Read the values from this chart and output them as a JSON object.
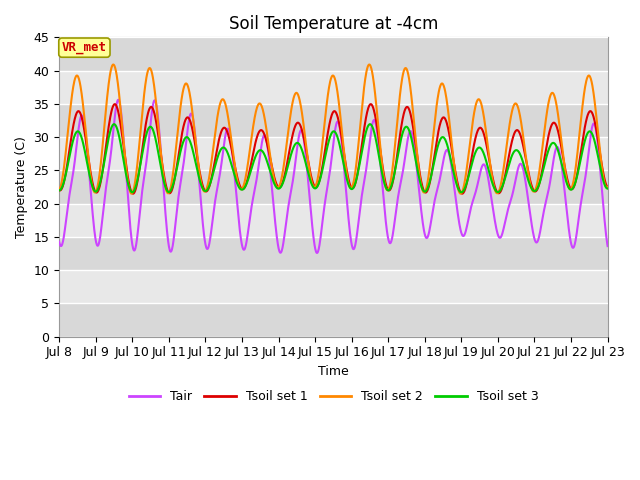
{
  "title": "Soil Temperature at -4cm",
  "xlabel": "Time",
  "ylabel": "Temperature (C)",
  "ylim": [
    0,
    45
  ],
  "yticks": [
    0,
    5,
    10,
    15,
    20,
    25,
    30,
    35,
    40,
    45
  ],
  "colors": {
    "Tair": "#cc44ff",
    "Tsoil1": "#dd0000",
    "Tsoil2": "#ff8800",
    "Tsoil3": "#00cc00"
  },
  "legend_labels": [
    "Tair",
    "Tsoil set 1",
    "Tsoil set 2",
    "Tsoil set 3"
  ],
  "annotation_text": "VR_met",
  "annotation_color": "#cc0000",
  "annotation_bg": "#ffff99",
  "band_colors": [
    "#d8d8d8",
    "#e8e8e8"
  ],
  "background_outer": "#ffffff",
  "grid_color": "#ffffff",
  "start_day": 8,
  "end_day": 23,
  "n_points": 1440,
  "title_fontsize": 12,
  "axis_fontsize": 9,
  "tick_fontsize": 9,
  "legend_fontsize": 9,
  "linewidth": 1.5
}
